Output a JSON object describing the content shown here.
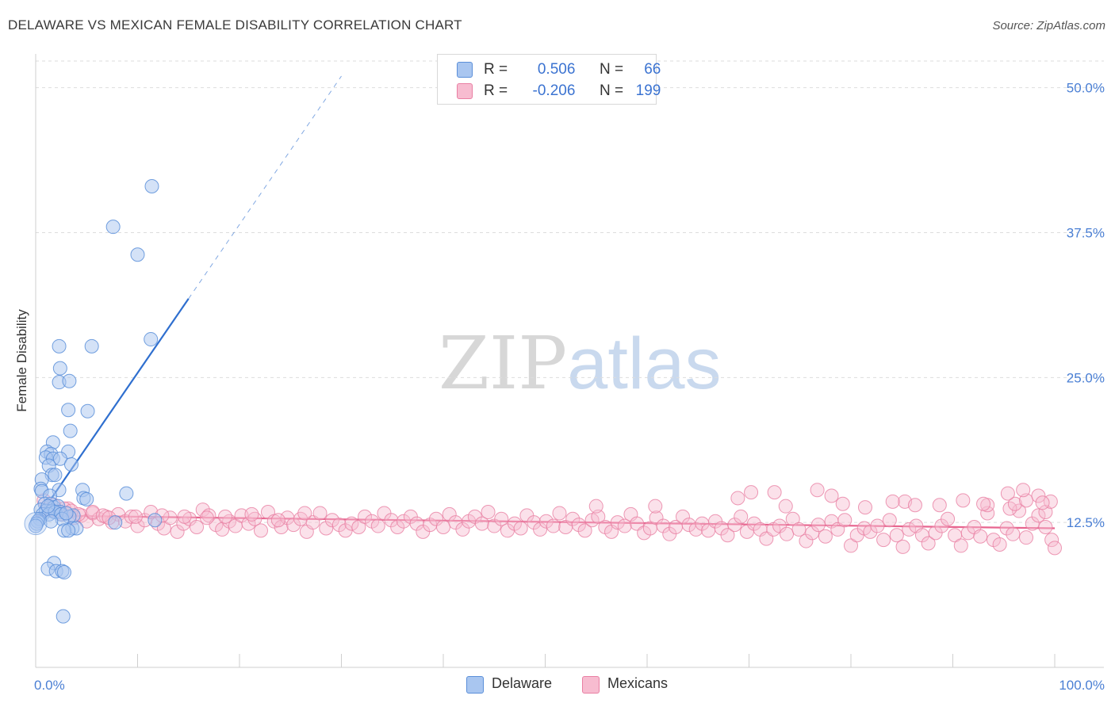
{
  "header": {
    "title": "DELAWARE VS MEXICAN FEMALE DISABILITY CORRELATION CHART",
    "source": "Source: ZipAtlas.com"
  },
  "watermark": {
    "zip": "ZIP",
    "atlas": "atlas"
  },
  "legend": {
    "row1": {
      "r_label": "R =",
      "r_value": "0.506",
      "n_label": "N =",
      "n_value": "66"
    },
    "row2": {
      "r_label": "R =",
      "r_value": "-0.206",
      "n_label": "N =",
      "n_value": "199"
    }
  },
  "bottom_legend": {
    "series1": "Delaware",
    "series2": "Mexicans"
  },
  "colors": {
    "delaware_fill": "#a9c6f0",
    "delaware_stroke": "#5b8fd9",
    "delaware_line": "#2f6fcf",
    "mexicans_fill": "#f7bcd0",
    "mexicans_stroke": "#e97fa3",
    "mexicans_line": "#e7658f",
    "tick": "#4a7fd4",
    "grid": "#dddddd"
  },
  "chart_data": {
    "type": "scatter",
    "title": "DELAWARE VS MEXICAN FEMALE DISABILITY CORRELATION CHART",
    "xlabel": "",
    "ylabel": "Female Disability",
    "xlim": [
      0,
      100
    ],
    "ylim": [
      0,
      52.3
    ],
    "y_ticks": [
      {
        "value": 12.5,
        "label": "12.5%"
      },
      {
        "value": 25.0,
        "label": "25.0%"
      },
      {
        "value": 37.5,
        "label": "37.5%"
      },
      {
        "value": 50.0,
        "label": "50.0%"
      }
    ],
    "x_ticks": [
      {
        "value": 0,
        "label": "0.0%"
      },
      {
        "value": 100,
        "label": "100.0%"
      }
    ],
    "x_minor_ticks": [
      0,
      10,
      20,
      30,
      40,
      50,
      60,
      70,
      80,
      90,
      100
    ],
    "grid": true,
    "legend_position": "top-center",
    "series": [
      {
        "name": "Delaware",
        "r": 0.506,
        "n": 66,
        "trend": {
          "x_start": 0,
          "y_start": 12.6,
          "x_solid_end": 15,
          "x_dashed_end": 30,
          "slope": 1.28
        },
        "points": [
          [
            11.4,
            41.5
          ],
          [
            7.6,
            38.0
          ],
          [
            10.0,
            35.6
          ],
          [
            11.3,
            28.3
          ],
          [
            2.3,
            27.7
          ],
          [
            5.5,
            27.7
          ],
          [
            2.4,
            25.8
          ],
          [
            2.3,
            24.6
          ],
          [
            3.3,
            24.7
          ],
          [
            3.2,
            22.2
          ],
          [
            5.1,
            22.1
          ],
          [
            3.4,
            20.4
          ],
          [
            1.7,
            19.4
          ],
          [
            1.1,
            18.6
          ],
          [
            1.5,
            18.4
          ],
          [
            3.2,
            18.6
          ],
          [
            1.0,
            18.1
          ],
          [
            1.7,
            18.0
          ],
          [
            2.4,
            18.0
          ],
          [
            1.3,
            17.4
          ],
          [
            3.5,
            17.5
          ],
          [
            1.6,
            16.6
          ],
          [
            1.9,
            16.6
          ],
          [
            0.6,
            16.2
          ],
          [
            0.5,
            15.4
          ],
          [
            0.6,
            15.2
          ],
          [
            2.3,
            15.3
          ],
          [
            4.6,
            15.3
          ],
          [
            8.9,
            15.0
          ],
          [
            1.4,
            14.8
          ],
          [
            4.7,
            14.6
          ],
          [
            5.0,
            14.5
          ],
          [
            0.9,
            14.1
          ],
          [
            1.5,
            14.1
          ],
          [
            1.8,
            13.8
          ],
          [
            2.2,
            13.9
          ],
          [
            0.5,
            13.6
          ],
          [
            1.0,
            13.5
          ],
          [
            1.6,
            13.5
          ],
          [
            2.4,
            13.4
          ],
          [
            0.7,
            13.2
          ],
          [
            1.3,
            13.2
          ],
          [
            1.9,
            13.4
          ],
          [
            2.5,
            13.2
          ],
          [
            3.7,
            13.1
          ],
          [
            3.3,
            13.0
          ],
          [
            2.6,
            12.8
          ],
          [
            0.4,
            12.8
          ],
          [
            0.2,
            12.6
          ],
          [
            1.5,
            12.6
          ],
          [
            7.8,
            12.5
          ],
          [
            11.7,
            12.7
          ],
          [
            3.6,
            12.0
          ],
          [
            4.0,
            12.0
          ],
          [
            2.8,
            11.8
          ],
          [
            3.2,
            11.8
          ],
          [
            0.1,
            12.4
          ],
          [
            0.0,
            12.2
          ],
          [
            1.8,
            9.0
          ],
          [
            1.2,
            8.5
          ],
          [
            2.0,
            8.3
          ],
          [
            2.6,
            8.3
          ],
          [
            2.8,
            8.2
          ],
          [
            2.7,
            4.4
          ],
          [
            3.0,
            13.3
          ],
          [
            1.2,
            13.9
          ]
        ]
      },
      {
        "name": "Mexicans",
        "r": -0.206,
        "n": 199,
        "trend": {
          "x_start": 0,
          "y_start": 13.1,
          "x_end": 100,
          "y_end": 12.0
        },
        "points": [
          [
            0.8,
            14.4
          ],
          [
            1.3,
            13.8
          ],
          [
            2.0,
            13.5
          ],
          [
            2.6,
            13.2
          ],
          [
            3.2,
            13.7
          ],
          [
            3.8,
            12.9
          ],
          [
            4.5,
            13.1
          ],
          [
            5.0,
            12.6
          ],
          [
            5.6,
            13.3
          ],
          [
            6.2,
            12.8
          ],
          [
            6.9,
            13.0
          ],
          [
            7.5,
            12.5
          ],
          [
            8.1,
            13.2
          ],
          [
            8.8,
            12.6
          ],
          [
            9.4,
            13.0
          ],
          [
            10.0,
            12.2
          ],
          [
            10.7,
            12.7
          ],
          [
            11.3,
            13.4
          ],
          [
            12.0,
            12.4
          ],
          [
            12.6,
            12.0
          ],
          [
            13.2,
            12.9
          ],
          [
            13.9,
            11.7
          ],
          [
            14.5,
            12.4
          ],
          [
            15.1,
            12.8
          ],
          [
            15.8,
            12.1
          ],
          [
            16.4,
            13.6
          ],
          [
            17.0,
            13.1
          ],
          [
            17.7,
            12.3
          ],
          [
            18.3,
            11.9
          ],
          [
            19.0,
            12.6
          ],
          [
            19.6,
            12.2
          ],
          [
            20.2,
            13.1
          ],
          [
            20.9,
            12.4
          ],
          [
            21.5,
            12.8
          ],
          [
            22.1,
            11.8
          ],
          [
            22.8,
            13.4
          ],
          [
            23.4,
            12.6
          ],
          [
            24.1,
            12.1
          ],
          [
            24.7,
            12.9
          ],
          [
            25.3,
            12.3
          ],
          [
            26.0,
            12.8
          ],
          [
            26.6,
            11.7
          ],
          [
            27.2,
            12.5
          ],
          [
            27.9,
            13.3
          ],
          [
            28.5,
            12.0
          ],
          [
            29.1,
            12.7
          ],
          [
            29.8,
            12.3
          ],
          [
            30.4,
            11.8
          ],
          [
            31.0,
            12.4
          ],
          [
            31.7,
            12.1
          ],
          [
            32.3,
            13.0
          ],
          [
            33.0,
            12.6
          ],
          [
            33.6,
            12.2
          ],
          [
            34.2,
            13.3
          ],
          [
            34.9,
            12.7
          ],
          [
            35.5,
            12.1
          ],
          [
            36.1,
            12.6
          ],
          [
            36.8,
            13.0
          ],
          [
            37.4,
            12.4
          ],
          [
            38.0,
            11.7
          ],
          [
            38.7,
            12.3
          ],
          [
            39.3,
            12.8
          ],
          [
            40.0,
            12.1
          ],
          [
            40.6,
            13.2
          ],
          [
            41.2,
            12.5
          ],
          [
            41.9,
            11.9
          ],
          [
            42.5,
            12.6
          ],
          [
            43.1,
            13.0
          ],
          [
            43.8,
            12.4
          ],
          [
            44.4,
            13.4
          ],
          [
            45.0,
            12.2
          ],
          [
            45.7,
            12.8
          ],
          [
            46.3,
            11.8
          ],
          [
            47.0,
            12.4
          ],
          [
            47.6,
            12.0
          ],
          [
            48.2,
            13.1
          ],
          [
            48.9,
            12.5
          ],
          [
            49.5,
            11.9
          ],
          [
            50.1,
            12.6
          ],
          [
            50.8,
            12.2
          ],
          [
            51.4,
            13.3
          ],
          [
            52.0,
            12.1
          ],
          [
            52.7,
            12.8
          ],
          [
            53.3,
            12.3
          ],
          [
            53.9,
            11.8
          ],
          [
            54.6,
            12.7
          ],
          [
            55.2,
            13.0
          ],
          [
            55.9,
            12.1
          ],
          [
            56.5,
            11.7
          ],
          [
            57.1,
            12.5
          ],
          [
            57.8,
            12.2
          ],
          [
            58.4,
            13.2
          ],
          [
            59.0,
            12.4
          ],
          [
            59.7,
            11.6
          ],
          [
            60.3,
            12.0
          ],
          [
            60.9,
            12.9
          ],
          [
            61.6,
            12.2
          ],
          [
            62.2,
            11.5
          ],
          [
            62.8,
            12.1
          ],
          [
            63.5,
            13.0
          ],
          [
            64.1,
            12.3
          ],
          [
            64.8,
            11.9
          ],
          [
            65.4,
            12.4
          ],
          [
            66.0,
            11.8
          ],
          [
            66.7,
            12.6
          ],
          [
            67.3,
            12.0
          ],
          [
            67.9,
            11.4
          ],
          [
            68.6,
            12.3
          ],
          [
            69.2,
            13.0
          ],
          [
            69.8,
            11.7
          ],
          [
            70.5,
            12.4
          ],
          [
            71.1,
            11.9
          ],
          [
            71.7,
            11.1
          ],
          [
            72.4,
            11.9
          ],
          [
            73.0,
            12.2
          ],
          [
            73.7,
            11.5
          ],
          [
            74.3,
            12.8
          ],
          [
            74.9,
            11.9
          ],
          [
            75.6,
            10.9
          ],
          [
            76.2,
            11.6
          ],
          [
            76.8,
            12.3
          ],
          [
            77.5,
            11.3
          ],
          [
            78.1,
            12.6
          ],
          [
            78.7,
            11.9
          ],
          [
            79.4,
            12.7
          ],
          [
            80.0,
            10.5
          ],
          [
            80.6,
            11.4
          ],
          [
            81.3,
            12.0
          ],
          [
            81.9,
            11.7
          ],
          [
            82.6,
            12.2
          ],
          [
            83.2,
            11.0
          ],
          [
            83.8,
            12.7
          ],
          [
            84.5,
            11.4
          ],
          [
            85.1,
            10.4
          ],
          [
            85.7,
            11.9
          ],
          [
            86.4,
            12.2
          ],
          [
            87.0,
            11.4
          ],
          [
            87.6,
            10.7
          ],
          [
            88.3,
            11.6
          ],
          [
            88.9,
            12.2
          ],
          [
            89.5,
            12.8
          ],
          [
            90.2,
            11.4
          ],
          [
            90.8,
            10.5
          ],
          [
            91.5,
            11.6
          ],
          [
            92.1,
            12.1
          ],
          [
            92.7,
            11.3
          ],
          [
            93.4,
            13.3
          ],
          [
            94.0,
            11.0
          ],
          [
            94.6,
            10.6
          ],
          [
            95.3,
            12.0
          ],
          [
            95.9,
            11.5
          ],
          [
            96.5,
            13.5
          ],
          [
            97.2,
            11.2
          ],
          [
            97.8,
            12.4
          ],
          [
            98.4,
            13.1
          ],
          [
            99.1,
            12.1
          ],
          [
            99.7,
            11.0
          ],
          [
            100.0,
            10.3
          ],
          [
            55.0,
            13.9
          ],
          [
            60.8,
            13.9
          ],
          [
            73.6,
            13.9
          ],
          [
            81.4,
            13.8
          ],
          [
            85.3,
            14.3
          ],
          [
            88.7,
            14.0
          ],
          [
            91.0,
            14.4
          ],
          [
            93.4,
            14.0
          ],
          [
            95.6,
            13.7
          ],
          [
            96.1,
            14.1
          ],
          [
            97.2,
            14.4
          ],
          [
            98.4,
            14.8
          ],
          [
            99.1,
            13.4
          ],
          [
            99.6,
            14.3
          ],
          [
            95.4,
            15.0
          ],
          [
            96.9,
            15.3
          ],
          [
            70.2,
            15.1
          ],
          [
            68.9,
            14.6
          ],
          [
            72.5,
            15.1
          ],
          [
            79.2,
            14.1
          ],
          [
            86.3,
            14.0
          ],
          [
            98.8,
            14.2
          ],
          [
            78.1,
            14.8
          ],
          [
            76.7,
            15.3
          ],
          [
            93.0,
            14.1
          ],
          [
            84.1,
            14.3
          ],
          [
            1.8,
            14.0
          ],
          [
            2.8,
            13.7
          ],
          [
            3.5,
            13.5
          ],
          [
            4.2,
            13.2
          ],
          [
            5.6,
            13.4
          ],
          [
            6.6,
            13.1
          ],
          [
            7.2,
            12.9
          ],
          [
            9.8,
            13.0
          ],
          [
            12.4,
            13.1
          ],
          [
            14.6,
            13.0
          ],
          [
            16.8,
            12.9
          ],
          [
            18.6,
            13.0
          ],
          [
            21.2,
            13.2
          ],
          [
            23.8,
            12.7
          ],
          [
            26.4,
            13.3
          ]
        ]
      }
    ]
  }
}
